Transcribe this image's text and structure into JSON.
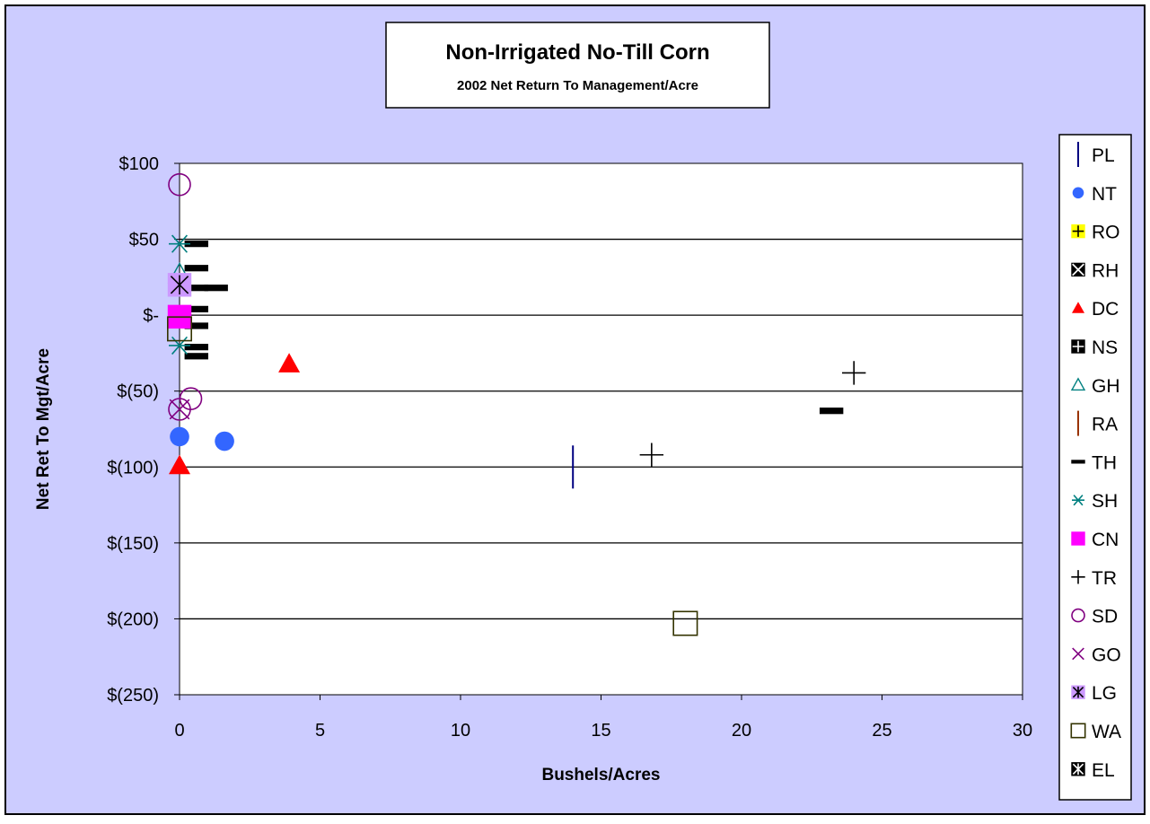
{
  "chart_data": {
    "type": "scatter",
    "title": "Non-Irrigated No-Till Corn",
    "subtitle": "2002 Net Return To Management/Acre",
    "xlabel": "Bushels/Acres",
    "ylabel": "Net Ret To Mgt/Acre",
    "xlim": [
      0,
      30
    ],
    "ylim": [
      -250,
      100
    ],
    "xticks": [
      0,
      5,
      10,
      15,
      20,
      25,
      30
    ],
    "xtick_labels": [
      "0",
      "5",
      "10",
      "15",
      "20",
      "25",
      "30"
    ],
    "yticks": [
      100,
      50,
      0,
      -50,
      -100,
      -150,
      -200,
      -250
    ],
    "ytick_labels": [
      "$100",
      "$50",
      "$-",
      "$(50)",
      "$(100)",
      "$(150)",
      "$(200)",
      "$(250)"
    ],
    "grid": "horizontal",
    "legend_position": "right",
    "colors": {
      "background": "#CCCCFF",
      "plot_area": "#FFFFFF"
    },
    "series": [
      {
        "name": "PL",
        "marker": "vline",
        "color": "#000080",
        "points": [
          [
            14.0,
            -100
          ]
        ]
      },
      {
        "name": "NT",
        "marker": "circle-filled",
        "color": "#3366FF",
        "points": [
          [
            0.0,
            -80
          ],
          [
            1.6,
            -83
          ]
        ]
      },
      {
        "name": "RO",
        "marker": "plus-box",
        "color": "#FFFF00",
        "points": []
      },
      {
        "name": "RH",
        "marker": "x-box",
        "color": "#000000",
        "points": []
      },
      {
        "name": "DC",
        "marker": "triangle-filled",
        "color": "#FF0000",
        "points": [
          [
            3.9,
            -32
          ],
          [
            0.0,
            -99
          ]
        ]
      },
      {
        "name": "NS",
        "marker": "plus-box",
        "color": "#000000",
        "points": []
      },
      {
        "name": "GH",
        "marker": "triangle-open",
        "color": "#008080",
        "points": [
          [
            0.0,
            27
          ]
        ]
      },
      {
        "name": "RA",
        "marker": "vline",
        "color": "#993300",
        "points": []
      },
      {
        "name": "TH",
        "marker": "dash",
        "color": "#000000",
        "points": [
          [
            0.6,
            47
          ],
          [
            0.6,
            31
          ],
          [
            0.6,
            18
          ],
          [
            1.3,
            18
          ],
          [
            0.6,
            4
          ],
          [
            0.6,
            -7
          ],
          [
            0.6,
            -21
          ],
          [
            0.6,
            -27
          ],
          [
            23.2,
            -63
          ]
        ]
      },
      {
        "name": "SH",
        "marker": "asterisk",
        "color": "#008080",
        "points": [
          [
            0.0,
            47
          ],
          [
            0.0,
            -20
          ]
        ]
      },
      {
        "name": "CN",
        "marker": "square-filled",
        "color": "#FF00FF",
        "points": [
          [
            0.0,
            -1
          ]
        ]
      },
      {
        "name": "TR",
        "marker": "plus",
        "color": "#000000",
        "points": [
          [
            24.0,
            -38
          ],
          [
            16.8,
            -92
          ]
        ]
      },
      {
        "name": "SD",
        "marker": "circle-open",
        "color": "#800080",
        "points": [
          [
            0.0,
            86
          ],
          [
            0.4,
            -55
          ],
          [
            0.0,
            -62
          ]
        ]
      },
      {
        "name": "GO",
        "marker": "x",
        "color": "#800080",
        "points": [
          [
            0.0,
            -62
          ]
        ]
      },
      {
        "name": "LG",
        "marker": "asterisk-box",
        "color": "#CC99FF",
        "points": [
          [
            0.0,
            20
          ]
        ]
      },
      {
        "name": "WA",
        "marker": "square-open",
        "color": "#333300",
        "points": [
          [
            0.0,
            -9
          ],
          [
            18.0,
            -203
          ]
        ]
      },
      {
        "name": "EL",
        "marker": "asterisk-box",
        "color": "#000000",
        "points": []
      }
    ]
  }
}
